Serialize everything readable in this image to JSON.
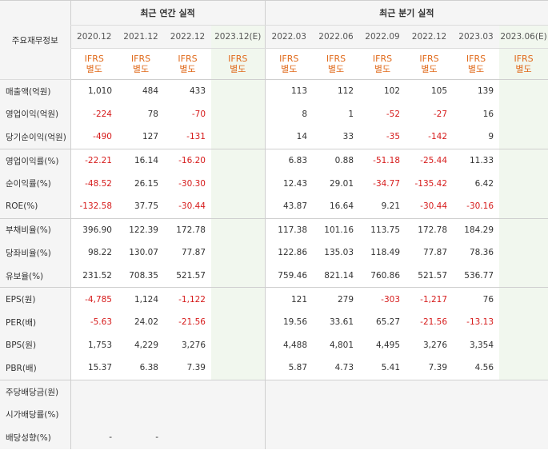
{
  "corner_label": "주요재무정보",
  "group_annual": "최근 연간 실적",
  "group_quarterly": "최근 분기 실적",
  "columns": [
    {
      "period": "2020.12",
      "std1": "IFRS",
      "std2": "별도"
    },
    {
      "period": "2021.12",
      "std1": "IFRS",
      "std2": "별도"
    },
    {
      "period": "2022.12",
      "std1": "IFRS",
      "std2": "별도"
    },
    {
      "period": "2023.12(E)",
      "std1": "IFRS",
      "std2": "별도"
    },
    {
      "period": "2022.03",
      "std1": "IFRS",
      "std2": "별도"
    },
    {
      "period": "2022.06",
      "std1": "IFRS",
      "std2": "별도"
    },
    {
      "period": "2022.09",
      "std1": "IFRS",
      "std2": "별도"
    },
    {
      "period": "2022.12",
      "std1": "IFRS",
      "std2": "별도"
    },
    {
      "period": "2023.03",
      "std1": "IFRS",
      "std2": "별도"
    },
    {
      "period": "2023.06(E)",
      "std1": "IFRS",
      "std2": "별도"
    }
  ],
  "rows": [
    {
      "label": "매출액(억원)",
      "values": [
        "1,010",
        "484",
        "433",
        "",
        "113",
        "112",
        "102",
        "105",
        "139",
        ""
      ]
    },
    {
      "label": "영업이익(억원)",
      "values": [
        "-224",
        "78",
        "-70",
        "",
        "8",
        "1",
        "-52",
        "-27",
        "16",
        ""
      ]
    },
    {
      "label": "당기순이익(억원)",
      "values": [
        "-490",
        "127",
        "-131",
        "",
        "14",
        "33",
        "-35",
        "-142",
        "9",
        ""
      ]
    },
    {
      "label": "영업이익률(%)",
      "values": [
        "-22.21",
        "16.14",
        "-16.20",
        "",
        "6.83",
        "0.88",
        "-51.18",
        "-25.44",
        "11.33",
        ""
      ]
    },
    {
      "label": "순이익률(%)",
      "values": [
        "-48.52",
        "26.15",
        "-30.30",
        "",
        "12.43",
        "29.01",
        "-34.77",
        "-135.42",
        "6.42",
        ""
      ]
    },
    {
      "label": "ROE(%)",
      "values": [
        "-132.58",
        "37.75",
        "-30.44",
        "",
        "43.87",
        "16.64",
        "9.21",
        "-30.44",
        "-30.16",
        ""
      ]
    },
    {
      "label": "부채비율(%)",
      "values": [
        "396.90",
        "122.39",
        "172.78",
        "",
        "117.38",
        "101.16",
        "113.75",
        "172.78",
        "184.29",
        ""
      ]
    },
    {
      "label": "당좌비율(%)",
      "values": [
        "98.22",
        "130.07",
        "77.87",
        "",
        "122.86",
        "135.03",
        "118.49",
        "77.87",
        "78.36",
        ""
      ]
    },
    {
      "label": "유보율(%)",
      "values": [
        "231.52",
        "708.35",
        "521.57",
        "",
        "759.46",
        "821.14",
        "760.86",
        "521.57",
        "536.77",
        ""
      ]
    },
    {
      "label": "EPS(원)",
      "values": [
        "-4,785",
        "1,124",
        "-1,122",
        "",
        "121",
        "279",
        "-303",
        "-1,217",
        "76",
        ""
      ]
    },
    {
      "label": "PER(배)",
      "values": [
        "-5.63",
        "24.02",
        "-21.56",
        "",
        "19.56",
        "33.61",
        "65.27",
        "-21.56",
        "-13.13",
        ""
      ]
    },
    {
      "label": "BPS(원)",
      "values": [
        "1,753",
        "4,229",
        "3,276",
        "",
        "4,488",
        "4,801",
        "4,495",
        "3,276",
        "3,354",
        ""
      ]
    },
    {
      "label": "PBR(배)",
      "values": [
        "15.37",
        "6.38",
        "7.39",
        "",
        "5.87",
        "4.73",
        "5.41",
        "7.39",
        "4.56",
        ""
      ]
    },
    {
      "label": "주당배당금(원)",
      "values": [
        "",
        "",
        "",
        "",
        "",
        "",
        "",
        "",
        "",
        ""
      ]
    },
    {
      "label": "시가배당률(%)",
      "values": [
        "",
        "",
        "",
        "",
        "",
        "",
        "",
        "",
        "",
        ""
      ]
    },
    {
      "label": "배당성향(%)",
      "values": [
        "-",
        "-",
        "",
        "",
        "",
        "",
        "",
        "",
        "",
        ""
      ]
    }
  ],
  "colors": {
    "negative": "#d61b1b",
    "ifrs": "#e06a1b",
    "estimate_bg": "#f1f7ee",
    "header_bg": "#f5f5f5"
  }
}
